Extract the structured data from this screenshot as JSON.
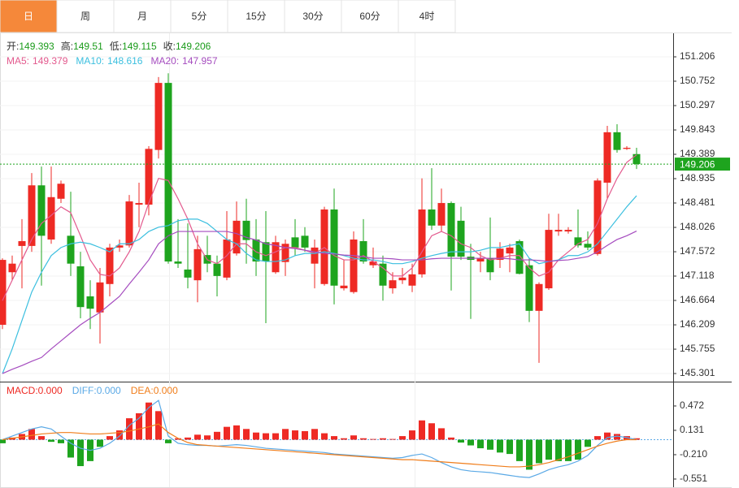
{
  "tabs": [
    "日",
    "周",
    "月",
    "5分",
    "15分",
    "30分",
    "60分",
    "4时"
  ],
  "active_tab": 0,
  "chart_data": [
    {
      "type": "candlestick",
      "ohlc_labels": [
        "开:",
        "高:",
        "低:",
        "收:"
      ],
      "open": [
        146.21,
        147.19,
        147.68,
        147.68,
        148.81,
        147.8,
        148.56,
        147.87,
        147.3,
        146.74,
        146.44,
        146.97,
        147.65,
        147.69,
        148.45,
        148.45,
        149.47,
        150.72,
        147.39,
        147.24,
        147.04,
        147.51,
        147.35,
        147.09,
        147.54,
        148.15,
        147.8,
        147.75,
        147.19,
        147.38,
        147.84,
        147.87,
        147.35,
        146.97,
        148.36,
        146.89,
        146.82,
        147.77,
        147.32,
        147.35,
        146.89,
        147.04,
        146.94,
        147.15,
        148.36,
        148.06,
        148.48,
        148.15,
        147.48,
        147.39,
        147.45,
        147.42,
        147.54,
        147.77,
        147.32,
        146.47,
        146.89,
        147.95,
        147.95,
        147.84,
        147.72,
        147.53,
        148.86,
        149.8,
        149.49,
        149.393
      ],
      "close": [
        147.42,
        147.35,
        147.77,
        148.81,
        147.87,
        148.59,
        148.84,
        147.35,
        146.54,
        146.51,
        147.0,
        147.65,
        147.69,
        148.51,
        148.48,
        149.49,
        150.72,
        147.39,
        147.35,
        147.09,
        147.62,
        147.35,
        147.12,
        147.8,
        148.15,
        147.79,
        147.39,
        147.39,
        147.75,
        147.72,
        147.65,
        147.65,
        147.65,
        148.36,
        146.94,
        146.94,
        147.8,
        147.39,
        147.39,
        146.94,
        147.04,
        147.09,
        147.15,
        148.36,
        148.06,
        148.48,
        147.48,
        147.48,
        147.42,
        147.45,
        147.19,
        147.63,
        147.65,
        147.16,
        146.47,
        146.97,
        147.98,
        147.98,
        147.98,
        147.69,
        147.65,
        148.9,
        149.8,
        149.47,
        149.51,
        149.206
      ],
      "high": [
        147.45,
        147.5,
        148.18,
        149.04,
        149.16,
        149.16,
        148.9,
        148.69,
        147.57,
        147.04,
        147.27,
        147.72,
        147.8,
        148.63,
        148.86,
        149.54,
        150.83,
        150.9,
        148.18,
        148.1,
        147.87,
        147.87,
        147.5,
        148.33,
        148.51,
        148.56,
        148.18,
        148.33,
        147.87,
        147.8,
        148.18,
        148.03,
        147.8,
        148.41,
        148.75,
        147.42,
        147.95,
        148.18,
        147.65,
        147.5,
        147.19,
        147.27,
        147.35,
        148.94,
        149.13,
        148.75,
        148.51,
        148.41,
        147.72,
        147.57,
        148.21,
        147.75,
        147.72,
        147.8,
        147.45,
        147.0,
        148.28,
        148.28,
        148.03,
        148.36,
        147.95,
        148.94,
        149.92,
        149.95,
        149.54,
        149.51
      ],
      "low": [
        146.13,
        147.04,
        146.89,
        147.57,
        146.94,
        147.72,
        148.48,
        147.12,
        146.33,
        146.13,
        145.86,
        146.74,
        147.57,
        147.65,
        148.03,
        148.25,
        149.31,
        147.35,
        147.27,
        146.89,
        146.63,
        147.19,
        146.74,
        147.04,
        147.5,
        147.35,
        147.12,
        146.24,
        147.16,
        147.12,
        147.5,
        147.57,
        146.89,
        146.94,
        146.59,
        146.85,
        146.79,
        147.35,
        147.27,
        146.66,
        146.79,
        146.97,
        146.82,
        147.09,
        147.98,
        147.95,
        146.85,
        147.42,
        146.32,
        147.19,
        147.04,
        147.27,
        147.19,
        147.15,
        146.26,
        145.5,
        146.86,
        147.87,
        147.91,
        147.65,
        147.6,
        147.5,
        148.56,
        149.42,
        149.47,
        149.115
      ],
      "up_color": "#ee2a24",
      "down_color": "#1ea41e",
      "series": [
        {
          "name": "MA5:",
          "color": "#e35a8e",
          "values": [
            146.66,
            147.04,
            147.42,
            147.8,
            148.1,
            148.25,
            148.41,
            148.3,
            147.87,
            147.42,
            147.15,
            147.12,
            147.27,
            147.57,
            147.95,
            148.48,
            148.94,
            148.9,
            148.56,
            148.18,
            147.72,
            147.42,
            147.35,
            147.5,
            147.72,
            147.72,
            147.57,
            147.5,
            147.57,
            147.65,
            147.65,
            147.6,
            147.54,
            147.65,
            147.5,
            147.42,
            147.42,
            147.5,
            147.39,
            147.27,
            147.12,
            147.12,
            147.27,
            147.57,
            147.87,
            147.95,
            147.87,
            147.72,
            147.65,
            147.5,
            147.42,
            147.45,
            147.5,
            147.5,
            147.27,
            147.12,
            147.19,
            147.42,
            147.57,
            147.72,
            147.8,
            148.1,
            148.56,
            148.94,
            149.24,
            149.379
          ]
        },
        {
          "name": "MA10:",
          "color": "#3bbfdf",
          "values": [
            145.3,
            145.76,
            146.29,
            146.82,
            147.19,
            147.5,
            147.65,
            147.72,
            147.75,
            147.72,
            147.65,
            147.57,
            147.72,
            147.72,
            147.8,
            147.95,
            148.03,
            148.06,
            148.15,
            148.18,
            148.18,
            148.1,
            147.95,
            147.8,
            147.72,
            147.54,
            147.42,
            147.39,
            147.39,
            147.42,
            147.5,
            147.54,
            147.54,
            147.57,
            147.54,
            147.5,
            147.45,
            147.42,
            147.42,
            147.39,
            147.35,
            147.35,
            147.39,
            147.45,
            147.5,
            147.54,
            147.57,
            147.57,
            147.57,
            147.6,
            147.65,
            147.65,
            147.69,
            147.72,
            147.45,
            147.35,
            147.39,
            147.42,
            147.5,
            147.5,
            147.57,
            147.72,
            147.95,
            148.18,
            148.41,
            148.616
          ]
        },
        {
          "name": "MA20:",
          "color": "#a54cbf",
          "values": [
            145.3,
            145.38,
            145.45,
            145.53,
            145.6,
            145.76,
            145.91,
            146.06,
            146.21,
            146.33,
            146.44,
            146.59,
            146.74,
            146.97,
            147.19,
            147.42,
            147.72,
            147.87,
            147.95,
            147.95,
            147.95,
            147.95,
            147.95,
            147.95,
            147.91,
            147.84,
            147.79,
            147.72,
            147.69,
            147.65,
            147.63,
            147.6,
            147.57,
            147.54,
            147.53,
            147.51,
            147.5,
            147.48,
            147.45,
            147.45,
            147.44,
            147.42,
            147.42,
            147.42,
            147.44,
            147.45,
            147.45,
            147.45,
            147.45,
            147.45,
            147.45,
            147.45,
            147.44,
            147.42,
            147.42,
            147.41,
            147.39,
            147.41,
            147.42,
            147.45,
            147.48,
            147.57,
            147.69,
            147.8,
            147.87,
            147.957
          ]
        }
      ],
      "ylim": [
        145.15,
        151.63
      ],
      "yticks": [
        151.206,
        150.752,
        150.297,
        149.843,
        149.389,
        148.935,
        148.481,
        148.026,
        147.572,
        147.118,
        146.664,
        146.209,
        145.755,
        145.301
      ],
      "grid": true,
      "last_price_line": true,
      "last_price_color": "#1ea41e"
    },
    {
      "type": "macd",
      "series": [
        {
          "name": "MACD:",
          "color": "#ee2a24",
          "negative_color": "#1ea41e",
          "legend_value": {
            "value": 0,
            "label": "0.000"
          },
          "values": [
            -0.05,
            0.03,
            0.08,
            0.15,
            0.05,
            -0.03,
            -0.05,
            -0.25,
            -0.37,
            -0.3,
            -0.1,
            0.05,
            0.13,
            0.3,
            0.37,
            0.52,
            0.4,
            -0.05,
            0.02,
            0.03,
            0.07,
            0.06,
            0.11,
            0.18,
            0.2,
            0.15,
            0.1,
            0.09,
            0.09,
            0.15,
            0.13,
            0.12,
            0.15,
            0.09,
            0.05,
            0.02,
            0.06,
            0.02,
            0.01,
            0.02,
            0.01,
            0.05,
            0.13,
            0.27,
            0.23,
            0.16,
            0.03,
            -0.04,
            -0.08,
            -0.12,
            -0.14,
            -0.18,
            -0.2,
            -0.3,
            -0.42,
            -0.33,
            -0.28,
            -0.3,
            -0.3,
            -0.28,
            -0.1,
            0.05,
            0.1,
            0.08,
            0.05,
            0.02
          ]
        },
        {
          "name": "DIFF:",
          "color": "#5aa9e6",
          "legend_value": {
            "value": 0,
            "label": "0.000"
          },
          "values": [
            0.0,
            0.05,
            0.1,
            0.15,
            0.18,
            0.15,
            0.05,
            -0.05,
            -0.12,
            -0.15,
            -0.12,
            -0.05,
            0.05,
            0.2,
            0.3,
            0.45,
            0.55,
            0.05,
            -0.05,
            -0.07,
            -0.08,
            -0.08,
            -0.09,
            -0.08,
            -0.07,
            -0.08,
            -0.1,
            -0.12,
            -0.13,
            -0.14,
            -0.15,
            -0.16,
            -0.17,
            -0.18,
            -0.2,
            -0.21,
            -0.22,
            -0.23,
            -0.24,
            -0.25,
            -0.26,
            -0.25,
            -0.22,
            -0.2,
            -0.25,
            -0.32,
            -0.38,
            -0.42,
            -0.44,
            -0.45,
            -0.46,
            -0.48,
            -0.5,
            -0.52,
            -0.53,
            -0.48,
            -0.42,
            -0.38,
            -0.35,
            -0.3,
            -0.22,
            -0.08,
            0.03,
            0.05,
            0.03,
            0.0
          ]
        },
        {
          "name": "DEA:",
          "color": "#f07d1a",
          "legend_value": {
            "value": 0,
            "label": "0.000"
          },
          "values": [
            0.0,
            0.02,
            0.04,
            0.06,
            0.08,
            0.09,
            0.1,
            0.1,
            0.09,
            0.08,
            0.08,
            0.09,
            0.1,
            0.12,
            0.15,
            0.18,
            0.22,
            0.1,
            0.02,
            -0.04,
            -0.07,
            -0.08,
            -0.09,
            -0.1,
            -0.11,
            -0.12,
            -0.13,
            -0.14,
            -0.15,
            -0.16,
            -0.17,
            -0.18,
            -0.19,
            -0.2,
            -0.21,
            -0.22,
            -0.23,
            -0.24,
            -0.25,
            -0.26,
            -0.27,
            -0.28,
            -0.28,
            -0.29,
            -0.3,
            -0.31,
            -0.32,
            -0.33,
            -0.34,
            -0.35,
            -0.36,
            -0.37,
            -0.38,
            -0.38,
            -0.37,
            -0.35,
            -0.32,
            -0.28,
            -0.24,
            -0.19,
            -0.14,
            -0.09,
            -0.05,
            -0.02,
            0.0,
            0.0
          ]
        }
      ],
      "ylim": [
        -0.665,
        0.79
      ],
      "yticks": [
        0.472,
        0.131,
        {
          "value": -0.21,
          "label": "-0.210"
        },
        -0.551
      ],
      "zero_line": true
    }
  ]
}
